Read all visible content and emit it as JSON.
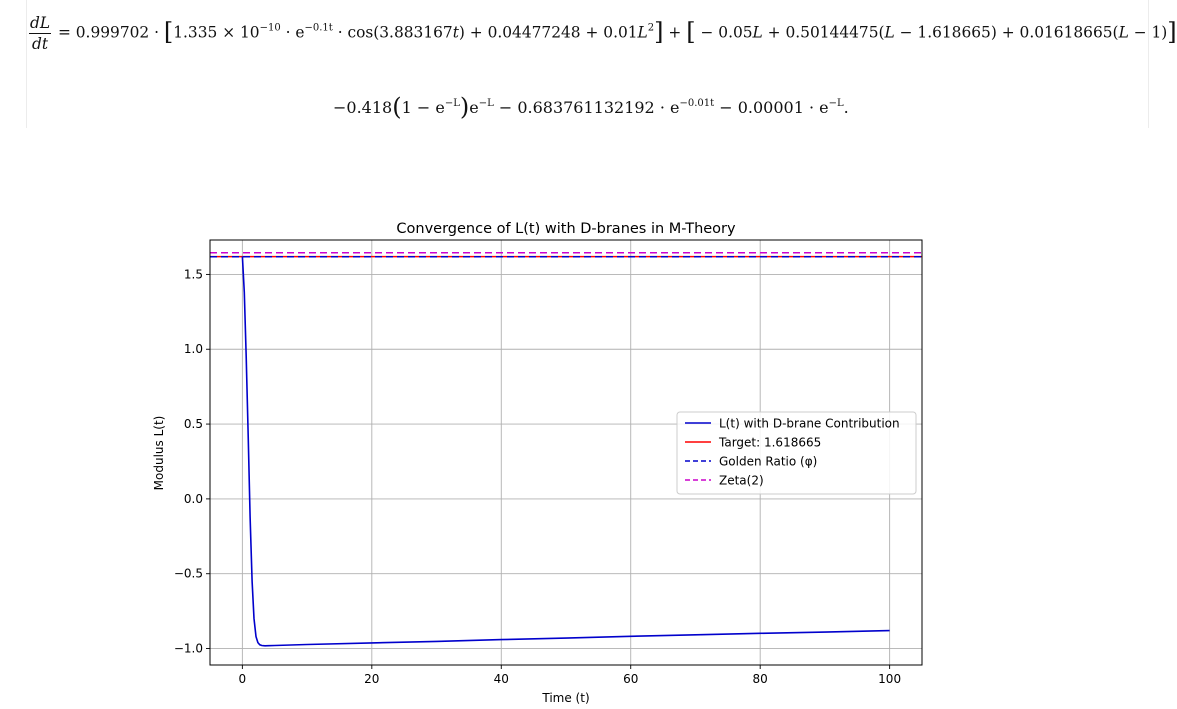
{
  "equation": {
    "lhs_num": "dL",
    "lhs_den": "dt",
    "line1": {
      "coef": " = 0.999702 · ",
      "t1a": "1.335 × 10",
      "t1a_exp": "−10",
      "t1b": " · e",
      "t1b_exp": "−0.1t",
      "t1c": " · cos(3.883167",
      "t1d": ") + 0.04477248 + 0.01",
      "t1e_exp": "2",
      "mid": " + ",
      "t2": " − 0.05",
      "t3": " + 0.50144475(",
      "t4": " − 1.618665) + 0.01618665(",
      "t5": " − 1)"
    },
    "line2": {
      "a": "−0.418",
      "b": "1 − e",
      "b_exp": "−L",
      "c": "e",
      "c_exp": "−L",
      "d": " − 0.683761132192 · e",
      "d_exp": "−0.01t",
      "e": " − 0.00001 · e",
      "e_exp": "−L",
      "f": "."
    }
  },
  "chart_data": {
    "type": "line",
    "title": "Convergence of L(t) with D-branes in M-Theory",
    "xlabel": "Time (t)",
    "ylabel": "Modulus L(t)",
    "xlim": [
      -5,
      105
    ],
    "ylim": [
      -1.11,
      1.73
    ],
    "xticks": [
      0,
      20,
      40,
      60,
      80,
      100
    ],
    "yticks": [
      -1.0,
      -0.5,
      0.0,
      0.5,
      1.0,
      1.5
    ],
    "xtick_labels": [
      "0",
      "20",
      "40",
      "60",
      "80",
      "100"
    ],
    "ytick_labels": [
      "−1.0",
      "−0.5",
      "0.0",
      "0.5",
      "1.0",
      "1.5"
    ],
    "grid": true,
    "legend_position": "center-right",
    "series": [
      {
        "name": "L(t) with D-brane Contribution",
        "color": "#0000cc",
        "style": "solid",
        "x": [
          0,
          0.3,
          0.6,
          0.9,
          1.2,
          1.5,
          1.8,
          2.1,
          2.4,
          2.7,
          3.0,
          3.5,
          4,
          5,
          10,
          20,
          30,
          40,
          50,
          60,
          70,
          80,
          90,
          100
        ],
        "y": [
          1.62,
          1.38,
          0.95,
          0.42,
          -0.12,
          -0.55,
          -0.8,
          -0.92,
          -0.96,
          -0.975,
          -0.98,
          -0.982,
          -0.981,
          -0.98,
          -0.973,
          -0.962,
          -0.952,
          -0.94,
          -0.93,
          -0.918,
          -0.908,
          -0.898,
          -0.89,
          -0.88
        ]
      },
      {
        "name": "Target: 1.618665",
        "color": "#ff0000",
        "style": "solid",
        "hline": 1.618665
      },
      {
        "name": "Golden Ratio (φ)",
        "color": "#0000cc",
        "style": "dashed",
        "hline": 1.618034
      },
      {
        "name": "Zeta(2)",
        "color": "#cc00cc",
        "style": "dashed",
        "hline": 1.644934
      }
    ]
  }
}
